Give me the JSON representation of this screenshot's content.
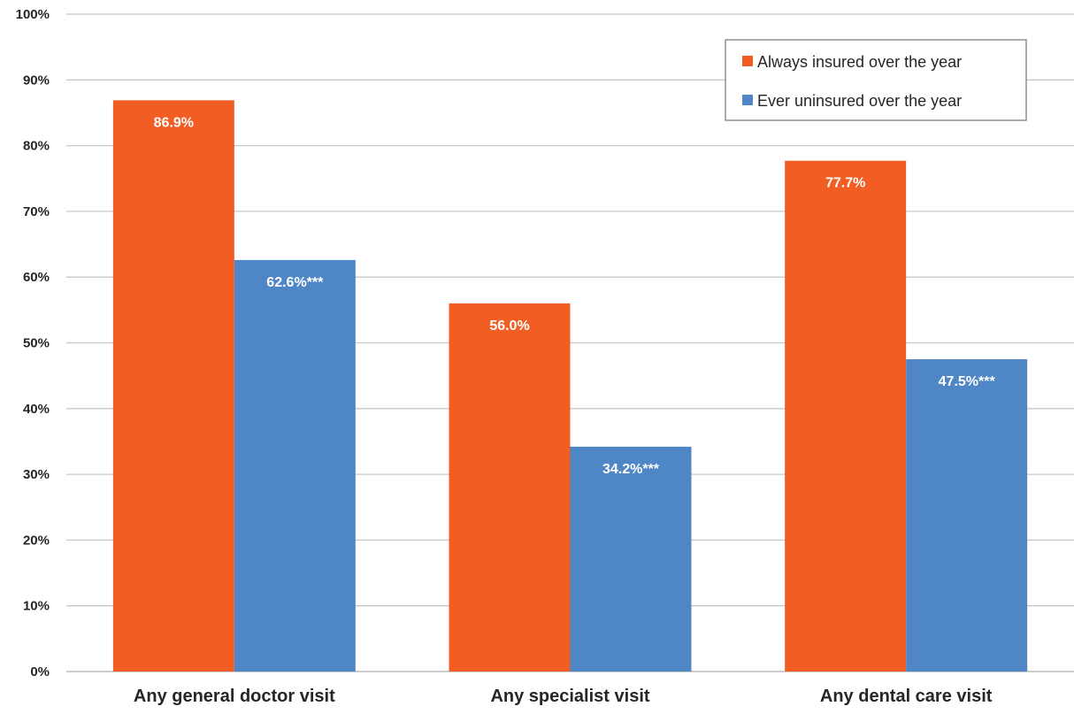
{
  "chart_data": {
    "type": "bar",
    "categories": [
      "Any general doctor visit",
      "Any specialist visit",
      "Any dental care visit"
    ],
    "series": [
      {
        "name": "Always insured over the year",
        "color": "#f15d22",
        "values": [
          86.9,
          56.0,
          77.7
        ],
        "labels": [
          "86.9%",
          "56.0%",
          "77.7%"
        ]
      },
      {
        "name": "Ever uninsured over the year",
        "color": "#4f86c6",
        "values": [
          62.6,
          34.2,
          47.5
        ],
        "labels": [
          "62.6%***",
          "34.2%***",
          "47.5%***"
        ]
      }
    ],
    "ylim": [
      0,
      100
    ],
    "yticks": [
      0,
      10,
      20,
      30,
      40,
      50,
      60,
      70,
      80,
      90,
      100
    ],
    "ytick_labels": [
      "0%",
      "10%",
      "20%",
      "30%",
      "40%",
      "50%",
      "60%",
      "70%",
      "80%",
      "90%",
      "100%"
    ],
    "grid": true,
    "grid_color": "#c8c8c8",
    "legend_position": "top-right",
    "title": "",
    "xlabel": "",
    "ylabel": ""
  }
}
